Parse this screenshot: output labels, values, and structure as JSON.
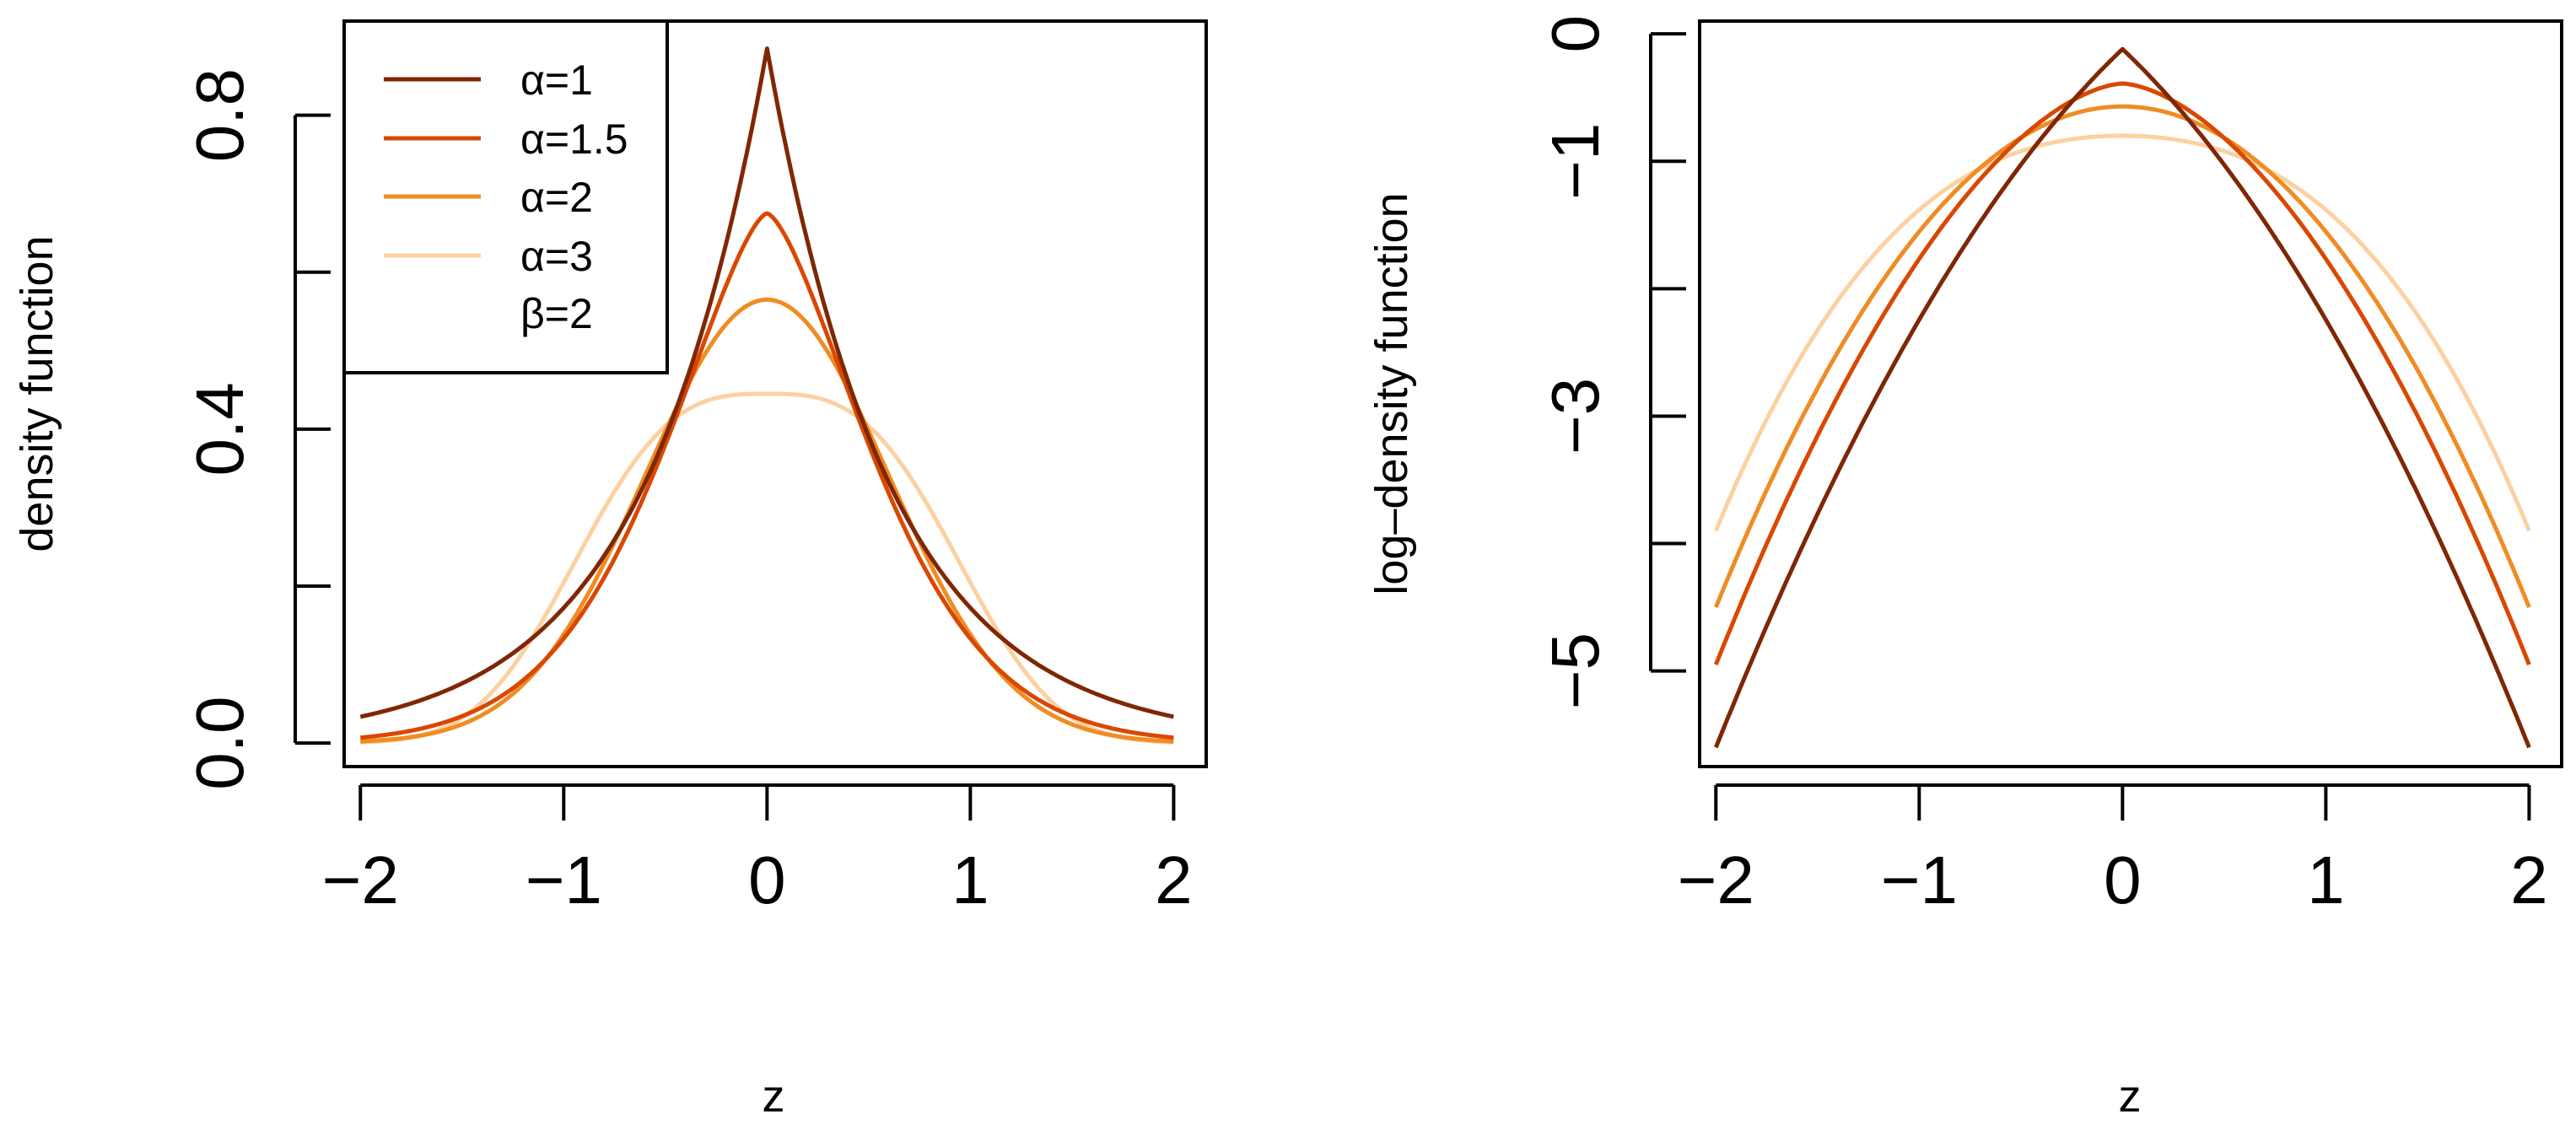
{
  "chart_data": [
    {
      "id": "density",
      "type": "line",
      "title": "",
      "xlabel": "z",
      "ylabel": "density function",
      "xlim": [
        -2.08,
        2.16
      ],
      "ylim": [
        -0.03,
        0.92
      ],
      "x_ticks": [
        -2,
        -1,
        0,
        1,
        2
      ],
      "x_tick_labels": [
        "−2",
        "−1",
        "0",
        "1",
        "2"
      ],
      "y_ticks": [
        0.0,
        0.2,
        0.4,
        0.6,
        0.8
      ],
      "y_tick_labels": [
        "0.0",
        "",
        "0.4",
        "",
        "0.8"
      ],
      "legend": {
        "position": "top-left",
        "entries": [
          "α=1",
          "α=1.5",
          "α=2",
          "α=3"
        ],
        "note": "β=2"
      },
      "series": [
        {
          "name": "α=1",
          "alpha": 1,
          "color": "#7F2704",
          "peak": 0.885
        },
        {
          "name": "α=1.5",
          "alpha": 1.5,
          "color": "#D94801",
          "peak": 0.675
        },
        {
          "name": "α=2",
          "alpha": 2,
          "color": "#F08C24",
          "peak": 0.565
        },
        {
          "name": "α=3",
          "alpha": 3,
          "color": "#FDD0A2",
          "peak": 0.445
        }
      ]
    },
    {
      "id": "log-density",
      "type": "line",
      "title": "",
      "xlabel": "z",
      "ylabel": "log–density function",
      "xlim": [
        -2.08,
        2.16
      ],
      "ylim": [
        -5.75,
        0.1
      ],
      "x_ticks": [
        -2,
        -1,
        0,
        1,
        2
      ],
      "x_tick_labels": [
        "−2",
        "−1",
        "0",
        "1",
        "2"
      ],
      "y_ticks": [
        0,
        -1,
        -2,
        -3,
        -4,
        -5
      ],
      "y_tick_labels": [
        "0",
        "−1",
        "",
        "−3",
        "",
        "−5"
      ],
      "series": [
        {
          "name": "α=1",
          "alpha": 1,
          "color": "#7F2704",
          "peak": -0.12,
          "end": -5.6
        },
        {
          "name": "α=1.5",
          "alpha": 1.5,
          "color": "#D94801",
          "peak": -0.39,
          "end": -4.95
        },
        {
          "name": "α=2",
          "alpha": 2,
          "color": "#F08C24",
          "peak": -0.57,
          "end": -4.5
        },
        {
          "name": "α=3",
          "alpha": 3,
          "color": "#FDD0A2",
          "peak": -0.8,
          "end": -3.9
        }
      ]
    }
  ]
}
